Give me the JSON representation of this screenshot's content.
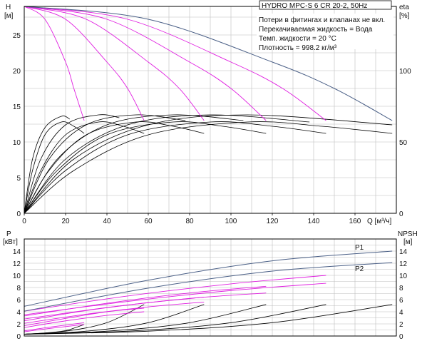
{
  "colors": {
    "frame": "#000000",
    "grid": "#bdbdbd",
    "system_curve": "#4a5f86",
    "pump_curve": "#e01ee0",
    "eff_curve": "#000000"
  },
  "header": {
    "title": "HYDRO MPC-S 6 CR 20-2, 50Hz",
    "notes": [
      "Потери в фитингах и клапанах не вкл.",
      "Перекачиваемая жидкость = Вода",
      "Темп. жидкости = 20 °C",
      "Плотность = 998.2 кг/м³"
    ]
  },
  "top_axes": {
    "h_label": "H",
    "h_unit": "[м]",
    "eta_label": "eta",
    "eta_unit": "[%]",
    "q_label": "Q [м³/ч]"
  },
  "bottom_axes": {
    "p_label": "P",
    "p_unit": "[кВт]",
    "npsh_label": "NPSH",
    "npsh_unit": "[м]",
    "p1_label": "P1",
    "p2_label": "P2"
  },
  "chart_data": [
    {
      "type": "line",
      "title": "HYDRO MPC-S 6 CR 20-2, 50Hz",
      "xlabel": "Q [м³/ч]",
      "ylabel": "H [м]",
      "y2label": "eta [%]",
      "xlim": [
        0,
        180
      ],
      "ylim": [
        0,
        29
      ],
      "y2lim": [
        0,
        145
      ],
      "x_ticks": [
        0,
        20,
        40,
        60,
        80,
        100,
        120,
        140,
        160
      ],
      "y_ticks": [
        0,
        5,
        10,
        15,
        20,
        25
      ],
      "y2_ticks": [
        0,
        50,
        100
      ],
      "grid": true,
      "head_series": [
        {
          "x": [
            0,
            10,
            20,
            24,
            29
          ],
          "y": [
            29,
            27.2,
            21.2,
            17.5,
            13
          ]
        },
        {
          "x": [
            0,
            20,
            40,
            50,
            58
          ],
          "y": [
            29,
            27.2,
            21.2,
            17.5,
            13
          ]
        },
        {
          "x": [
            0,
            30,
            60,
            75,
            87
          ],
          "y": [
            29,
            27.2,
            21.2,
            17.5,
            13
          ]
        },
        {
          "x": [
            0,
            40,
            80,
            100,
            117
          ],
          "y": [
            29,
            27.2,
            21.2,
            17.5,
            13
          ]
        },
        {
          "x": [
            0,
            50,
            100,
            125,
            146
          ],
          "y": [
            29,
            27.2,
            21.2,
            17.5,
            13
          ]
        },
        {
          "x": [
            0,
            60,
            120,
            150,
            178
          ],
          "y": [
            29,
            27.2,
            21.2,
            17.5,
            13
          ]
        }
      ],
      "eff_series": [
        {
          "x": [
            0,
            4,
            10,
            18,
            24,
            29
          ],
          "y": [
            0,
            30,
            55,
            64,
            61,
            56
          ]
        },
        {
          "x": [
            0,
            8,
            20,
            36,
            48,
            58
          ],
          "y": [
            0,
            30,
            55,
            64,
            61,
            56
          ]
        },
        {
          "x": [
            0,
            12,
            30,
            54,
            72,
            87
          ],
          "y": [
            0,
            30,
            55,
            64,
            61,
            56
          ]
        },
        {
          "x": [
            0,
            16,
            40,
            72,
            96,
            117
          ],
          "y": [
            0,
            30,
            55,
            64,
            61,
            56
          ]
        },
        {
          "x": [
            0,
            20,
            50,
            90,
            120,
            146
          ],
          "y": [
            0,
            30,
            55,
            64,
            61,
            56
          ]
        },
        {
          "x": [
            0,
            24,
            60,
            108,
            144,
            178
          ],
          "y": [
            0,
            30,
            55,
            64,
            61,
            56
          ]
        },
        {
          "x": [
            0,
            4,
            10,
            18,
            22
          ],
          "y": [
            0,
            38,
            60,
            68,
            66
          ]
        },
        {
          "x": [
            0,
            8,
            20,
            36,
            46
          ],
          "y": [
            0,
            38,
            62,
            69,
            67
          ]
        },
        {
          "x": [
            0,
            12,
            30,
            54,
            78
          ],
          "y": [
            0,
            38,
            62,
            69,
            65
          ]
        },
        {
          "x": [
            0,
            16,
            40,
            72,
            106
          ],
          "y": [
            0,
            38,
            62,
            69,
            65
          ]
        },
        {
          "x": [
            0,
            20,
            50,
            90,
            138
          ],
          "y": [
            0,
            38,
            62,
            69,
            64
          ]
        },
        {
          "x": [
            0,
            24,
            60,
            108,
            178
          ],
          "y": [
            0,
            38,
            62,
            69,
            62
          ]
        }
      ]
    },
    {
      "type": "line",
      "xlabel": "Q [м³/ч]",
      "ylabel": "P [кВт]",
      "y2label": "NPSH [м]",
      "xlim": [
        0,
        180
      ],
      "ylim": [
        0,
        16
      ],
      "y2lim": [
        0,
        16
      ],
      "y_ticks": [
        0,
        2,
        4,
        6,
        8,
        10,
        12,
        14
      ],
      "y2_ticks": [
        0,
        2,
        4,
        6,
        8,
        10,
        12,
        14
      ],
      "grid": true,
      "series": [
        {
          "name": "P1",
          "x": [
            0,
            60,
            120,
            178
          ],
          "y": [
            4.9,
            9.2,
            12.4,
            14
          ]
        },
        {
          "name": "P2",
          "x": [
            0,
            60,
            120,
            178
          ],
          "y": [
            4.1,
            7.9,
            10.7,
            12.1
          ]
        }
      ],
      "power_series": [
        {
          "x": [
            0,
            10,
            20,
            29
          ],
          "y": [
            0.85,
            1.35,
            1.8,
            2.2
          ]
        },
        {
          "x": [
            0,
            20,
            40,
            58
          ],
          "y": [
            1.7,
            2.9,
            4.0,
            4.6
          ]
        },
        {
          "x": [
            0,
            30,
            60,
            87
          ],
          "y": [
            2.5,
            4.2,
            5.5,
            6.4
          ]
        },
        {
          "x": [
            0,
            40,
            80,
            117
          ],
          "y": [
            3.3,
            5.4,
            7.1,
            8.2
          ]
        },
        {
          "x": [
            0,
            50,
            100,
            146
          ],
          "y": [
            4.1,
            6.6,
            8.6,
            10.0
          ]
        },
        {
          "x": [
            0,
            10,
            20,
            29
          ],
          "y": [
            0.7,
            1.15,
            1.55,
            1.9
          ]
        },
        {
          "x": [
            0,
            20,
            40,
            58
          ],
          "y": [
            1.4,
            2.5,
            3.4,
            4.0
          ]
        },
        {
          "x": [
            0,
            30,
            60,
            87
          ],
          "y": [
            2.1,
            3.6,
            4.8,
            5.6
          ]
        },
        {
          "x": [
            0,
            40,
            80,
            117
          ],
          "y": [
            2.8,
            4.7,
            6.2,
            7.1
          ]
        },
        {
          "x": [
            0,
            50,
            100,
            146
          ],
          "y": [
            3.5,
            5.7,
            7.5,
            8.7
          ]
        }
      ],
      "npsh_series": [
        {
          "x": [
            0,
            10,
            20,
            29
          ],
          "y": [
            0.3,
            0.5,
            0.9,
            1.9
          ]
        },
        {
          "x": [
            0,
            20,
            40,
            58
          ],
          "y": [
            0.3,
            0.8,
            2.2,
            5.2
          ]
        },
        {
          "x": [
            0,
            30,
            60,
            87
          ],
          "y": [
            0.3,
            0.8,
            2.2,
            5.2
          ]
        },
        {
          "x": [
            0,
            40,
            80,
            117
          ],
          "y": [
            0.3,
            0.8,
            2.2,
            5.2
          ]
        },
        {
          "x": [
            0,
            50,
            100,
            146
          ],
          "y": [
            0.3,
            0.8,
            2.2,
            5.2
          ]
        },
        {
          "x": [
            0,
            60,
            120,
            178
          ],
          "y": [
            0.3,
            0.8,
            2.2,
            5.2
          ]
        }
      ]
    }
  ]
}
